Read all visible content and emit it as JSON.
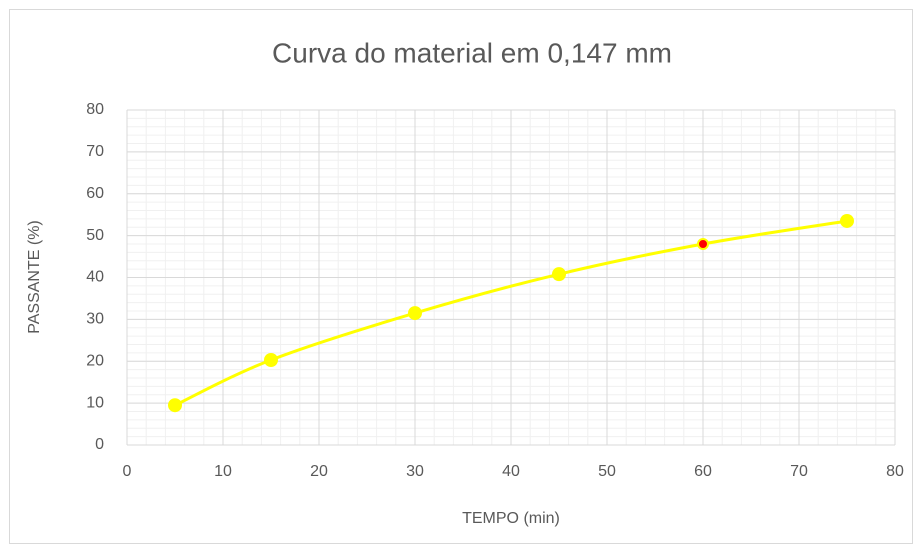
{
  "chart_data": {
    "type": "scatter",
    "title": "Curva do material em 0,147 mm",
    "x_label": "TEMPO (min)",
    "y_label": "PASSANTE (%)",
    "series": [
      {
        "name": "Curva",
        "color": "#ffff00",
        "x": [
          5,
          15,
          30,
          45,
          60,
          75
        ],
        "values": [
          9.5,
          20.3,
          31.5,
          40.8,
          48,
          53.5
        ],
        "marker_colors": [
          "#ffff00",
          "#ffff00",
          "#ffff00",
          "#ffff00",
          "#ff0000",
          "#ffff00"
        ]
      }
    ],
    "smooth": true,
    "xlim": [
      0,
      80
    ],
    "xticks": [
      0,
      10,
      20,
      30,
      40,
      50,
      60,
      70,
      80
    ],
    "ylim": [
      0,
      80
    ],
    "yticks": [
      0,
      10,
      20,
      30,
      40,
      50,
      60,
      70,
      80
    ],
    "grid": true,
    "minor_grid_step": [
      2,
      2
    ]
  }
}
